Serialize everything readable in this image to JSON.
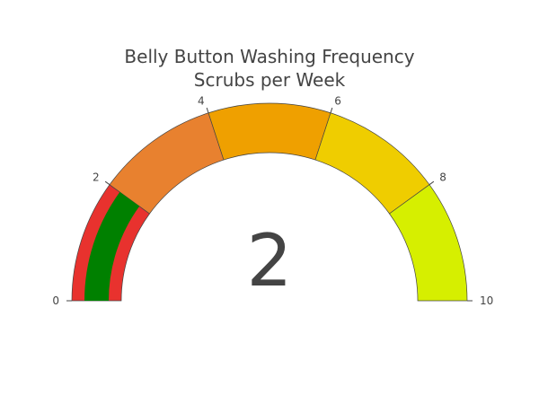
{
  "chart_data": {
    "type": "gauge",
    "title_lines": [
      "Belly Button Washing Frequency",
      "Scrubs per Week"
    ],
    "range": [
      0,
      10
    ],
    "value": 2,
    "value_text": "2",
    "tick_values": [
      0,
      2,
      4,
      6,
      8,
      10
    ],
    "tick_labels": [
      "0",
      "2",
      "4",
      "6",
      "8",
      "10"
    ],
    "steps": [
      {
        "range": [
          0,
          2
        ],
        "color": "#e8322e"
      },
      {
        "range": [
          2,
          4
        ],
        "color": "#e8812f"
      },
      {
        "range": [
          4,
          6
        ],
        "color": "#efa000"
      },
      {
        "range": [
          6,
          8
        ],
        "color": "#efcd00"
      },
      {
        "range": [
          8,
          10
        ],
        "color": "#d6ef00"
      }
    ],
    "bar": {
      "color": "#008000"
    },
    "border_color": "#444444"
  }
}
